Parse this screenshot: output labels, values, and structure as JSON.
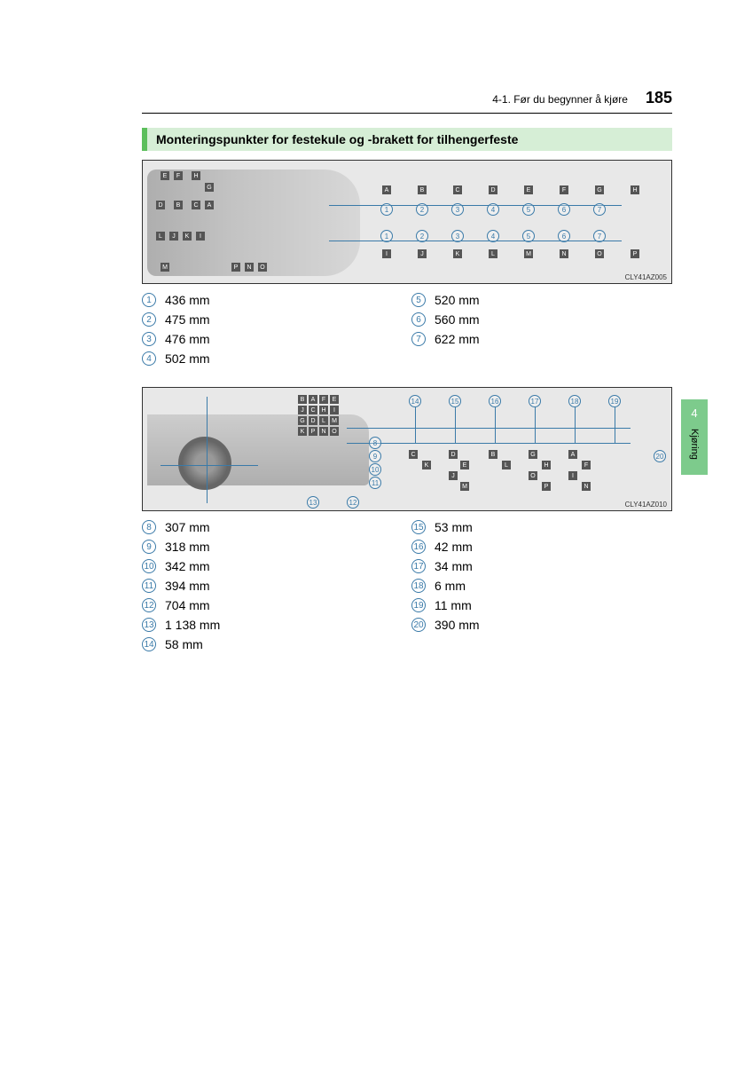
{
  "header": {
    "section_ref": "4-1. Før du begynner å kjøre",
    "page_number": "185"
  },
  "title": "Monteringspunkter for festekule og -brakett for tilhengerfeste",
  "side_tab": {
    "chapter_num": "4",
    "label": "Kjøring"
  },
  "diagram1": {
    "code": "CLY41AZ005",
    "top_letters": [
      "A",
      "B",
      "C",
      "D",
      "E",
      "F",
      "G",
      "H"
    ],
    "circle_row": [
      "1",
      "2",
      "3",
      "4",
      "5",
      "6",
      "7"
    ],
    "bottom_letters": [
      "I",
      "J",
      "K",
      "L",
      "M",
      "N",
      "O",
      "P"
    ],
    "left_letters_1": [
      "E",
      "F",
      "H",
      "G",
      "D",
      "B",
      "C",
      "A"
    ],
    "left_letters_2": [
      "L",
      "J",
      "K",
      "I",
      "M",
      "P",
      "N",
      "O"
    ]
  },
  "legend1": {
    "left": [
      {
        "n": "1",
        "v": "436 mm"
      },
      {
        "n": "2",
        "v": "475 mm"
      },
      {
        "n": "3",
        "v": "476 mm"
      },
      {
        "n": "4",
        "v": "502 mm"
      }
    ],
    "right": [
      {
        "n": "5",
        "v": "520 mm"
      },
      {
        "n": "6",
        "v": "560 mm"
      },
      {
        "n": "7",
        "v": "622 mm"
      }
    ]
  },
  "diagram2": {
    "code": "CLY41AZ010",
    "top_circles": [
      "14",
      "15",
      "16",
      "17",
      "18",
      "19"
    ],
    "right_circle": "20",
    "left_circles": [
      "8",
      "9",
      "10",
      "11",
      "12",
      "13"
    ],
    "grid_letters_top": [
      "B",
      "A",
      "F",
      "E",
      "J",
      "C",
      "H",
      "I",
      "G",
      "D",
      "L",
      "M",
      "K",
      "P",
      "N",
      "O"
    ],
    "bottom_letters": [
      "C",
      "K",
      "D",
      "E",
      "J",
      "M",
      "B",
      "L",
      "G",
      "H",
      "O",
      "P",
      "A",
      "F",
      "I",
      "N"
    ]
  },
  "legend2": {
    "left": [
      {
        "n": "8",
        "v": "307 mm"
      },
      {
        "n": "9",
        "v": "318 mm"
      },
      {
        "n": "10",
        "v": "342 mm"
      },
      {
        "n": "11",
        "v": "394 mm"
      },
      {
        "n": "12",
        "v": "704 mm"
      },
      {
        "n": "13",
        "v": "1 138 mm"
      },
      {
        "n": "14",
        "v": "58 mm"
      }
    ],
    "right": [
      {
        "n": "15",
        "v": "53 mm"
      },
      {
        "n": "16",
        "v": "42 mm"
      },
      {
        "n": "17",
        "v": "34 mm"
      },
      {
        "n": "18",
        "v": "6 mm"
      },
      {
        "n": "19",
        "v": "11 mm"
      },
      {
        "n": "20",
        "v": "390 mm"
      }
    ]
  },
  "colors": {
    "title_bg": "#d6eed6",
    "title_border": "#5cbf5c",
    "circle_color": "#3a7aa8",
    "tab_bg": "#7dcb8c",
    "diagram_bg": "#e8e8e8"
  }
}
